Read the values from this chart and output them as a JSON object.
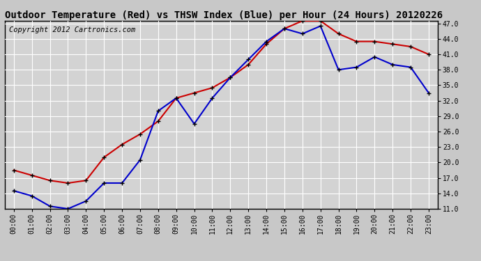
{
  "title": "Outdoor Temperature (Red) vs THSW Index (Blue) per Hour (24 Hours) 20120226",
  "copyright": "Copyright 2012 Cartronics.com",
  "hours": [
    "00:00",
    "01:00",
    "02:00",
    "03:00",
    "04:00",
    "05:00",
    "06:00",
    "07:00",
    "08:00",
    "09:00",
    "10:00",
    "11:00",
    "12:00",
    "13:00",
    "14:00",
    "15:00",
    "16:00",
    "17:00",
    "18:00",
    "19:00",
    "20:00",
    "21:00",
    "22:00",
    "23:00"
  ],
  "red_temp": [
    18.5,
    17.5,
    16.5,
    16.0,
    16.5,
    21.0,
    23.5,
    25.5,
    28.0,
    32.5,
    33.5,
    34.5,
    36.5,
    39.0,
    43.0,
    46.0,
    47.5,
    47.5,
    45.0,
    43.5,
    43.5,
    43.0,
    42.5,
    41.0
  ],
  "blue_thsw": [
    14.5,
    13.5,
    11.5,
    11.0,
    12.5,
    16.0,
    16.0,
    20.5,
    30.0,
    32.5,
    27.5,
    32.5,
    36.5,
    40.0,
    43.5,
    46.0,
    45.0,
    46.5,
    38.0,
    38.5,
    40.5,
    39.0,
    38.5,
    33.5
  ],
  "ylim_min": 11.0,
  "ylim_max": 47.0,
  "ytick_step": 3.0,
  "red_color": "#cc0000",
  "blue_color": "#0000cc",
  "outer_bg_color": "#c8c8c8",
  "plot_bg_color": "#d3d3d3",
  "grid_color": "#ffffff",
  "title_fontsize": 10,
  "copyright_fontsize": 7.5
}
